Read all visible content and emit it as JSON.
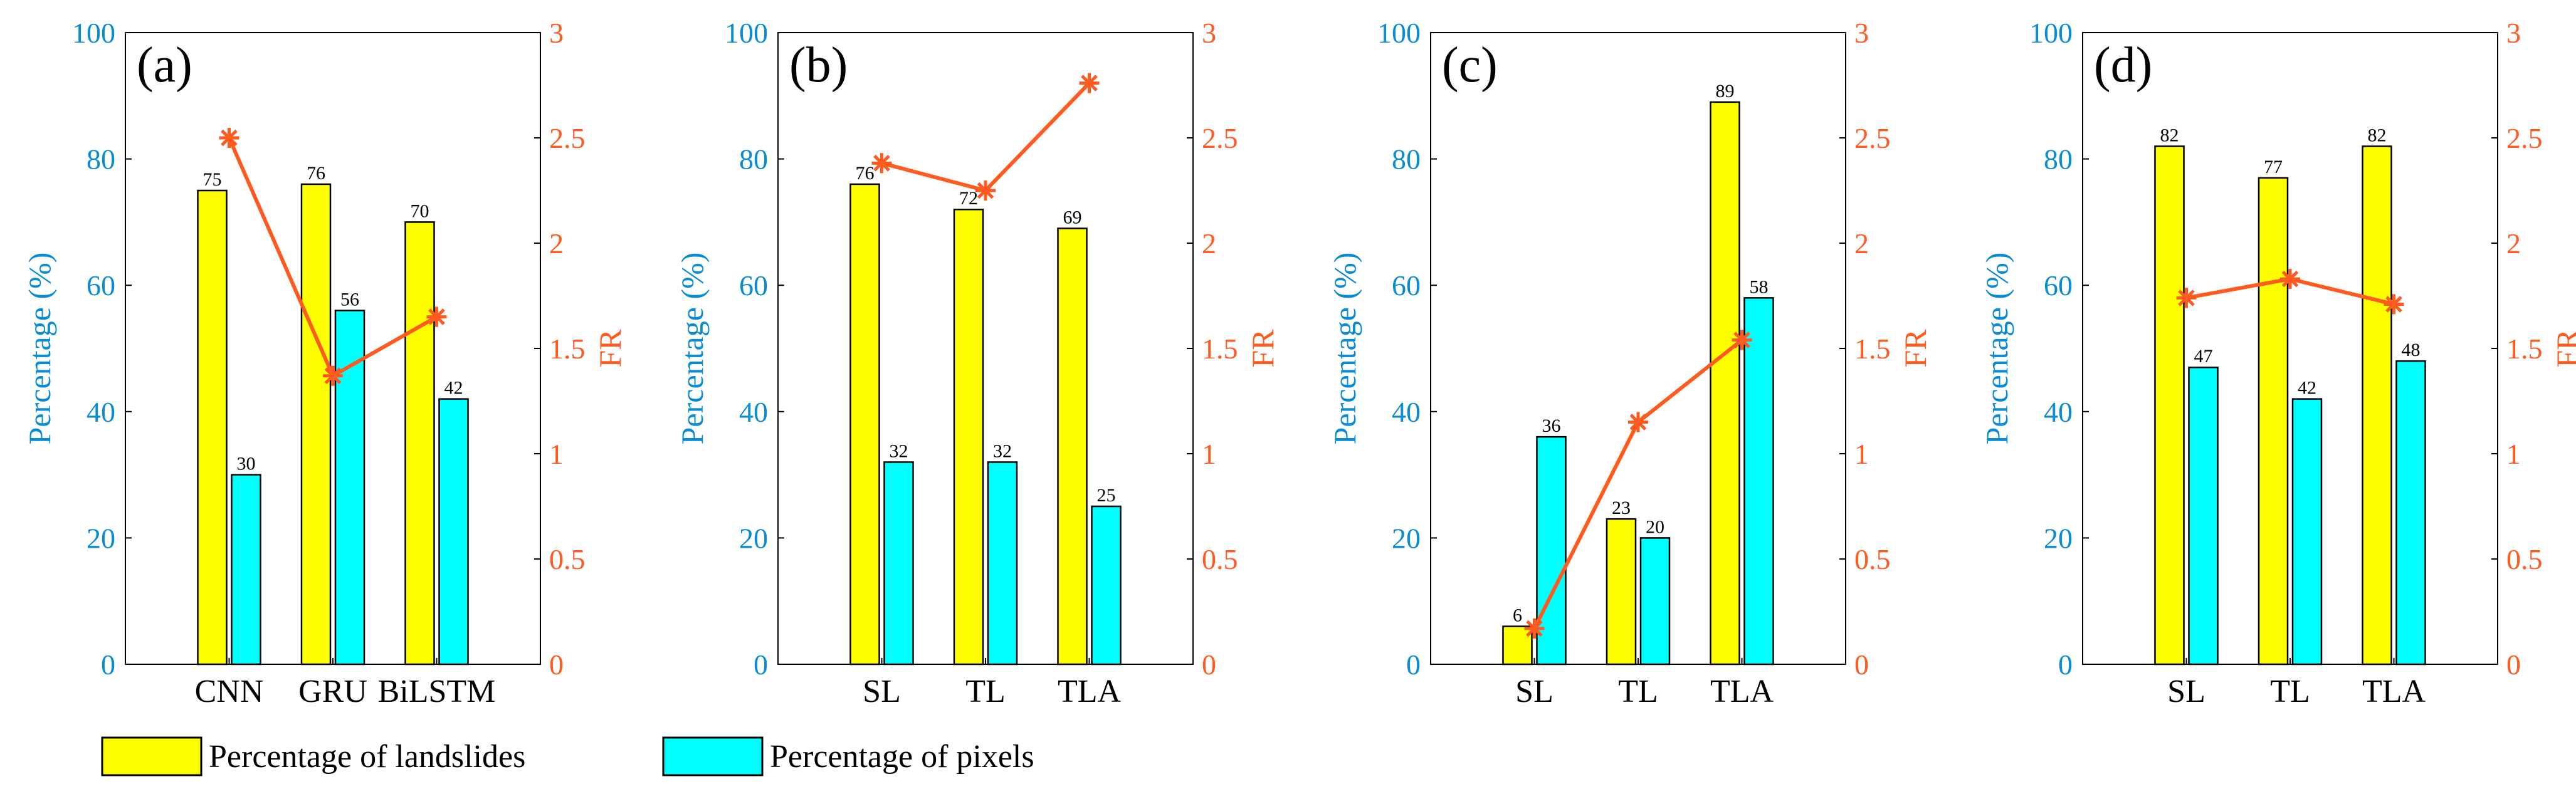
{
  "colors": {
    "landslides": "#ffff00",
    "pixels": "#00ffff",
    "fr": "#ff5a1f",
    "left_axis": "#0a8cd2",
    "right_axis": "#ff5a1f",
    "bar_edge": "#000000"
  },
  "legend": {
    "landslides_label": "Percentage of landslides",
    "pixels_label": "Percentage of pixels"
  },
  "chart_data": [
    {
      "type": "bar",
      "panel_label": "(a)",
      "categories": [
        "CNN",
        "GRU",
        "BiLSTM"
      ],
      "series": [
        {
          "name": "Percentage of landslides",
          "axis": "left",
          "values": [
            75,
            76,
            70
          ]
        },
        {
          "name": "Percentage of pixels",
          "axis": "left",
          "values": [
            30,
            56,
            42
          ]
        },
        {
          "name": "FR",
          "axis": "right",
          "kind": "line",
          "marker": "asterisk",
          "values": [
            2.5,
            1.37,
            1.65
          ]
        }
      ],
      "ylabel": "Percentage (%)",
      "y2label": "FR",
      "ylim": [
        0,
        100
      ],
      "y2lim": [
        0,
        3
      ],
      "yticks": [
        "0",
        "20",
        "40",
        "60",
        "80",
        "100"
      ],
      "y2ticks": [
        "0",
        "0.5",
        "1",
        "1.5",
        "2",
        "2.5",
        "3"
      ]
    },
    {
      "type": "bar",
      "panel_label": "(b)",
      "categories": [
        "SL",
        "TL",
        "TLA"
      ],
      "series": [
        {
          "name": "Percentage of landslides",
          "axis": "left",
          "values": [
            76,
            72,
            69
          ]
        },
        {
          "name": "Percentage of pixels",
          "axis": "left",
          "values": [
            32,
            32,
            25
          ]
        },
        {
          "name": "FR",
          "axis": "right",
          "kind": "line",
          "marker": "asterisk",
          "values": [
            2.38,
            2.25,
            2.76
          ]
        }
      ],
      "ylabel": "Percentage (%)",
      "y2label": "FR",
      "ylim": [
        0,
        100
      ],
      "y2lim": [
        0,
        3
      ],
      "yticks": [
        "0",
        "20",
        "40",
        "60",
        "80",
        "100"
      ],
      "y2ticks": [
        "0",
        "0.5",
        "1",
        "1.5",
        "2",
        "2.5",
        "3"
      ]
    },
    {
      "type": "bar",
      "panel_label": "(c)",
      "categories": [
        "SL",
        "TL",
        "TLA"
      ],
      "series": [
        {
          "name": "Percentage of landslides",
          "axis": "left",
          "values": [
            6,
            23,
            89
          ]
        },
        {
          "name": "Percentage of pixels",
          "axis": "left",
          "values": [
            36,
            20,
            58
          ]
        },
        {
          "name": "FR",
          "axis": "right",
          "kind": "line",
          "marker": "asterisk",
          "values": [
            0.17,
            1.15,
            1.54
          ]
        }
      ],
      "ylabel": "Percentage (%)",
      "y2label": "FR",
      "ylim": [
        0,
        100
      ],
      "y2lim": [
        0,
        3
      ],
      "yticks": [
        "0",
        "20",
        "40",
        "60",
        "80",
        "100"
      ],
      "y2ticks": [
        "0",
        "0.5",
        "1",
        "1.5",
        "2",
        "2.5",
        "3"
      ]
    },
    {
      "type": "bar",
      "panel_label": "(d)",
      "categories": [
        "SL",
        "TL",
        "TLA"
      ],
      "series": [
        {
          "name": "Percentage of landslides",
          "axis": "left",
          "values": [
            82,
            77,
            82
          ]
        },
        {
          "name": "Percentage of pixels",
          "axis": "left",
          "values": [
            47,
            42,
            48
          ]
        },
        {
          "name": "FR",
          "axis": "right",
          "kind": "line",
          "marker": "asterisk",
          "values": [
            1.74,
            1.83,
            1.71
          ]
        }
      ],
      "ylabel": "Percentage (%)",
      "y2label": "FR",
      "ylim": [
        0,
        100
      ],
      "y2lim": [
        0,
        3
      ],
      "yticks": [
        "0",
        "20",
        "40",
        "60",
        "80",
        "100"
      ],
      "y2ticks": [
        "0",
        "0.5",
        "1",
        "1.5",
        "2",
        "2.5",
        "3"
      ]
    }
  ]
}
